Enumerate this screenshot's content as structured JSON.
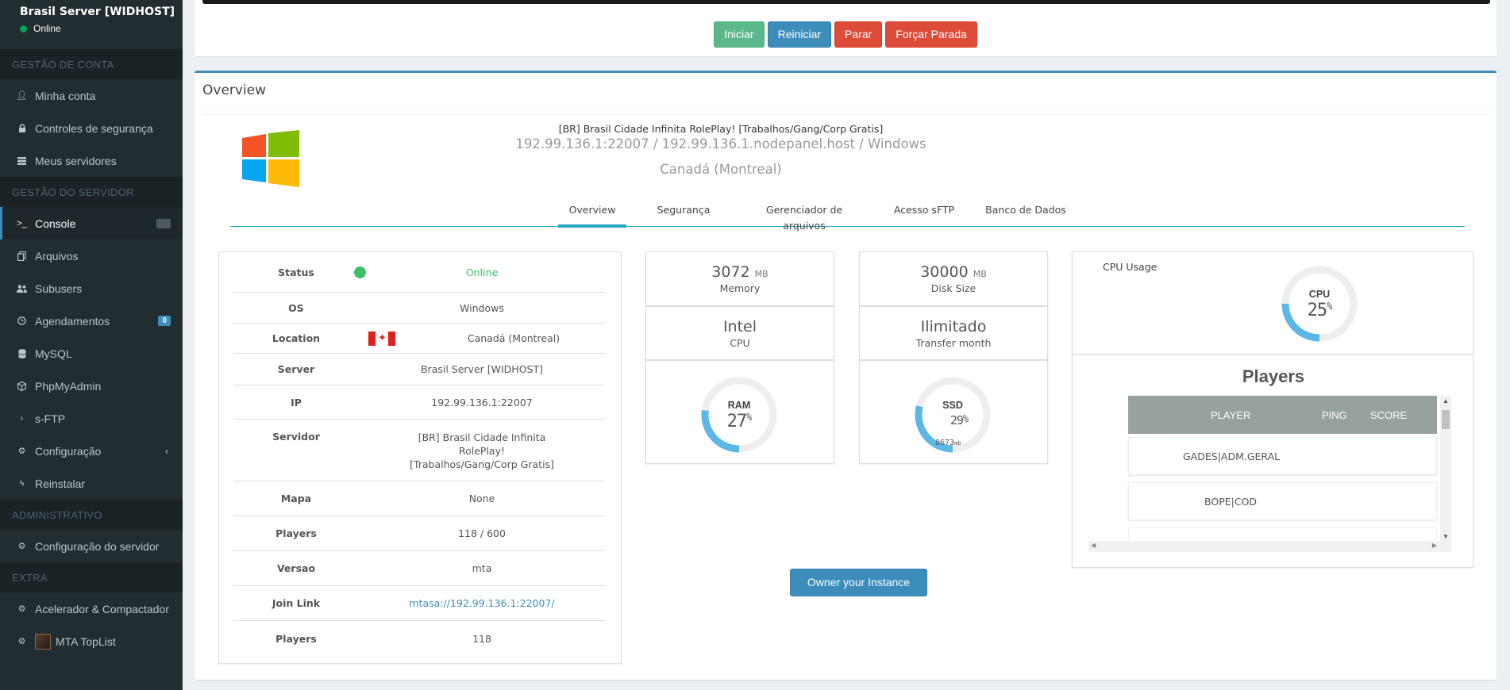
{
  "sidebar": {
    "server_name": "Brasil Server [WIDHOST]",
    "status": "Online",
    "sections": [
      {
        "header": "GESTÃO DE CONTA"
      },
      {
        "header": "GESTÃO DO SERVIDOR"
      },
      {
        "header": "ADMINISTRATIVO"
      },
      {
        "header": "EXTRA"
      }
    ],
    "items": {
      "minha_conta": "Minha conta",
      "controles": "Controles de segurança",
      "meus_servidores": "Meus servidores",
      "console": "Console",
      "arquivos": "Arquivos",
      "subusers": "Subusers",
      "agendamentos": "Agendamentos",
      "agendamentos_badge": "0",
      "mysql": "MySQL",
      "phpmyadmin": "PhpMyAdmin",
      "sftp": "s-FTP",
      "configuracao": "Configuração",
      "reinstalar": "Reinstalar",
      "config_servidor": "Configuração do servidor",
      "acelerador": "Acelerador & Compactador",
      "toplist": "MTA TopList"
    }
  },
  "controls": {
    "start": "Iniciar",
    "restart": "Reiniciar",
    "stop": "Parar",
    "force_stop": "Forçar Parada"
  },
  "overview": {
    "box_title": "Overview",
    "server_title": "[BR] Brasil Cidade Infinita RolePlay! [Trabalhos/Gang/Corp Gratis]",
    "address_line": "192.99.136.1:22007 / 192.99.136.1.nodepanel.host / Windows",
    "location_line": "Canadá (Montreal)",
    "tabs": [
      "Overview",
      "Segurança",
      "Gerenciador de arquivos",
      "Acesso sFTP",
      "Banco de Dados"
    ],
    "info": {
      "status_label": "Status",
      "status_value": "Online",
      "os_label": "OS",
      "os_value": "Windows",
      "location_label": "Location",
      "location_value": "Canadá (Montreal)",
      "server_label": "Server",
      "server_value": "Brasil Server [WIDHOST]",
      "ip_label": "IP",
      "ip_value": "192.99.136.1:22007",
      "servidor_label": "Servidor",
      "servidor_line1": "[BR] Brasil Cidade Infinita",
      "servidor_line2": "RolePlay!",
      "servidor_line3": "[Trabalhos/Gang/Corp Gratis]",
      "mapa_label": "Mapa",
      "mapa_value": "None",
      "players_label": "Players",
      "players_value": "118 / 600",
      "versao_label": "Versao",
      "versao_value": "mta",
      "join_label": "Join Link",
      "join_value": "mtasa://192.99.136.1:22007/",
      "players2_label": "Players",
      "players2_value": "118"
    },
    "stats": {
      "memory_value": "3072",
      "memory_unit": "MB",
      "memory_label": "Memory",
      "disk_value": "30000",
      "disk_unit": "MB",
      "disk_label": "Disk Size",
      "cpu_value": "Intel",
      "cpu_label": "CPU",
      "transfer_value": "Ilimitado",
      "transfer_label": "Transfer month",
      "ram_label": "RAM",
      "ram_percent": "27",
      "ram_fraction": 0.27,
      "ssd_label": "SSD",
      "ssd_percent": "29",
      "ssd_used": "8673",
      "ssd_used_unit": "mb",
      "ssd_fraction": 0.29,
      "cpu_usage_title": "CPU Usage",
      "cpu_gauge_label": "CPU",
      "cpu_percent": "25",
      "cpu_fraction": 0.25,
      "percent_sign": "%"
    },
    "owner_button": "Owner your Instance",
    "players_table": {
      "title": "Players",
      "col_player": "PLAYER",
      "col_ping": "PING",
      "col_score": "SCORE",
      "rows": [
        "GADES|ADM.GERAL",
        "BOPE|COD"
      ]
    }
  },
  "colors": {
    "accent": "#3c8dbc",
    "tab_accent": "#26a7c5",
    "gauge": "#5bb7e6",
    "online": "#3cc169"
  }
}
